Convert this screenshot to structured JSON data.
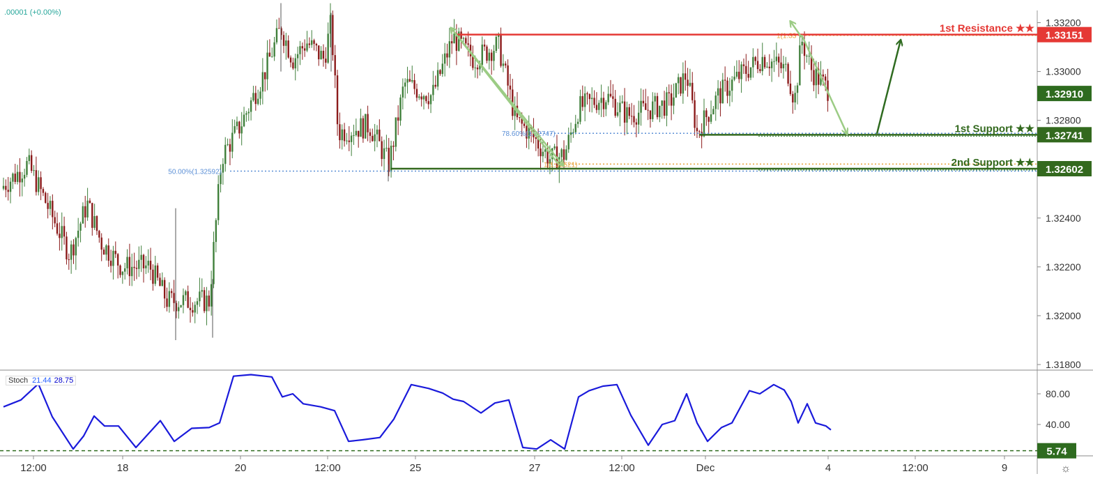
{
  "header": {
    "ohlc_change": ".00001 (+0.00%)"
  },
  "colors": {
    "resistance": "#e53935",
    "support": "#33691e",
    "current_price": "#2e6b1f",
    "bull_candle": "#3f7f3a",
    "bear_candle": "#8b1a1a",
    "fib_blue": "#5b8fd6",
    "fib_orange": "#e8a33a",
    "arrow_light": "#9ccc85",
    "arrow_dark": "#2f6b20",
    "stoch_line": "#1a1adb",
    "stoch_baseline": "#2e6b1f",
    "grid": "#cfcfcf"
  },
  "stoch": {
    "name": "Stoch",
    "k": "21.44",
    "d": "28.75"
  },
  "chart_data": {
    "type": "candlestick",
    "title": "",
    "price_axis": {
      "ylim": [
        1.3178,
        1.3325
      ],
      "ticks": [
        "1.33200",
        "1.33000",
        "1.32800",
        "1.32400",
        "1.32200",
        "1.32000",
        "1.31800"
      ]
    },
    "stoch_axis": {
      "ylim": [
        0,
        110
      ],
      "ticks": [
        "80.00",
        "40.00"
      ]
    },
    "time_axis": {
      "ticks": [
        "12:00",
        "18",
        "20",
        "12:00",
        "25",
        "27",
        "12:00",
        "Dec",
        "4",
        "12:00",
        "9"
      ]
    },
    "levels": [
      {
        "name": "1st Resistance ★★",
        "value": 1.33151,
        "label": "1.33151",
        "kind": "resistance"
      },
      {
        "name": "1st Support ★★",
        "value": 1.32741,
        "label": "1.32741",
        "kind": "support"
      },
      {
        "name": "2nd Support ★★",
        "value": 1.32602,
        "label": "1.32602",
        "kind": "support"
      }
    ],
    "current_price": {
      "value": 1.3291,
      "label": "1.32910"
    },
    "fib_labels": [
      {
        "text": "50.00%(1.32592)",
        "value": 1.32592
      },
      {
        "text": "78.60%(1.32747)",
        "value": 1.32747
      },
      {
        "text": "1(1.32621)",
        "value": 1.32621
      },
      {
        "text": "1(1.33",
        "value": 1.33148
      }
    ],
    "stoch_min": {
      "value": 5.74,
      "label": "5.74"
    },
    "price_path": [
      [
        0,
        1.3252
      ],
      [
        40,
        1.3262
      ],
      [
        60,
        1.325
      ],
      [
        100,
        1.3225
      ],
      [
        125,
        1.3246
      ],
      [
        145,
        1.323
      ],
      [
        175,
        1.322
      ],
      [
        215,
        1.322
      ],
      [
        240,
        1.3206
      ],
      [
        300,
        1.3206
      ],
      [
        318,
        1.3265
      ],
      [
        345,
        1.3278
      ],
      [
        380,
        1.33
      ],
      [
        403,
        1.3318
      ],
      [
        420,
        1.3305
      ],
      [
        440,
        1.3312
      ],
      [
        465,
        1.3305
      ],
      [
        475,
        1.332
      ],
      [
        485,
        1.3275
      ],
      [
        530,
        1.3278
      ],
      [
        558,
        1.3262
      ],
      [
        580,
        1.3295
      ],
      [
        620,
        1.329
      ],
      [
        650,
        1.3314
      ],
      [
        680,
        1.3305
      ],
      [
        715,
        1.3311
      ],
      [
        740,
        1.328
      ],
      [
        760,
        1.3275
      ],
      [
        790,
        1.3264
      ],
      [
        810,
        1.3266
      ],
      [
        830,
        1.3285
      ],
      [
        870,
        1.329
      ],
      [
        900,
        1.3282
      ],
      [
        960,
        1.3287
      ],
      [
        985,
        1.3299
      ],
      [
        1000,
        1.3275
      ],
      [
        1030,
        1.329
      ],
      [
        1060,
        1.3298
      ],
      [
        1095,
        1.3306
      ],
      [
        1130,
        1.33
      ],
      [
        1140,
        1.3288
      ],
      [
        1150,
        1.3313
      ],
      [
        1165,
        1.33
      ],
      [
        1190,
        1.3292
      ]
    ],
    "stoch_path": [
      [
        5,
        63
      ],
      [
        30,
        72
      ],
      [
        55,
        93
      ],
      [
        75,
        50
      ],
      [
        105,
        8
      ],
      [
        120,
        25
      ],
      [
        135,
        51
      ],
      [
        150,
        38
      ],
      [
        170,
        38
      ],
      [
        195,
        10
      ],
      [
        230,
        45
      ],
      [
        250,
        18
      ],
      [
        275,
        35
      ],
      [
        300,
        36
      ],
      [
        315,
        42
      ],
      [
        335,
        103
      ],
      [
        360,
        105
      ],
      [
        390,
        102
      ],
      [
        405,
        76
      ],
      [
        420,
        80
      ],
      [
        435,
        67
      ],
      [
        460,
        63
      ],
      [
        480,
        58
      ],
      [
        500,
        18
      ],
      [
        520,
        20
      ],
      [
        545,
        23
      ],
      [
        565,
        47
      ],
      [
        590,
        92
      ],
      [
        615,
        87
      ],
      [
        635,
        81
      ],
      [
        650,
        73
      ],
      [
        665,
        70
      ],
      [
        690,
        55
      ],
      [
        710,
        68
      ],
      [
        730,
        72
      ],
      [
        750,
        10
      ],
      [
        770,
        8
      ],
      [
        790,
        20
      ],
      [
        810,
        8
      ],
      [
        830,
        76
      ],
      [
        845,
        84
      ],
      [
        865,
        90
      ],
      [
        885,
        92
      ],
      [
        905,
        52
      ],
      [
        930,
        13
      ],
      [
        950,
        40
      ],
      [
        968,
        45
      ],
      [
        985,
        80
      ],
      [
        1000,
        42
      ],
      [
        1015,
        18
      ],
      [
        1035,
        36
      ],
      [
        1050,
        42
      ],
      [
        1075,
        84
      ],
      [
        1090,
        80
      ],
      [
        1110,
        92
      ],
      [
        1125,
        85
      ],
      [
        1135,
        70
      ],
      [
        1145,
        42
      ],
      [
        1158,
        67
      ],
      [
        1170,
        42
      ],
      [
        1185,
        38
      ],
      [
        1192,
        33
      ]
    ]
  },
  "annotations": {
    "star_suffix": "★★"
  }
}
